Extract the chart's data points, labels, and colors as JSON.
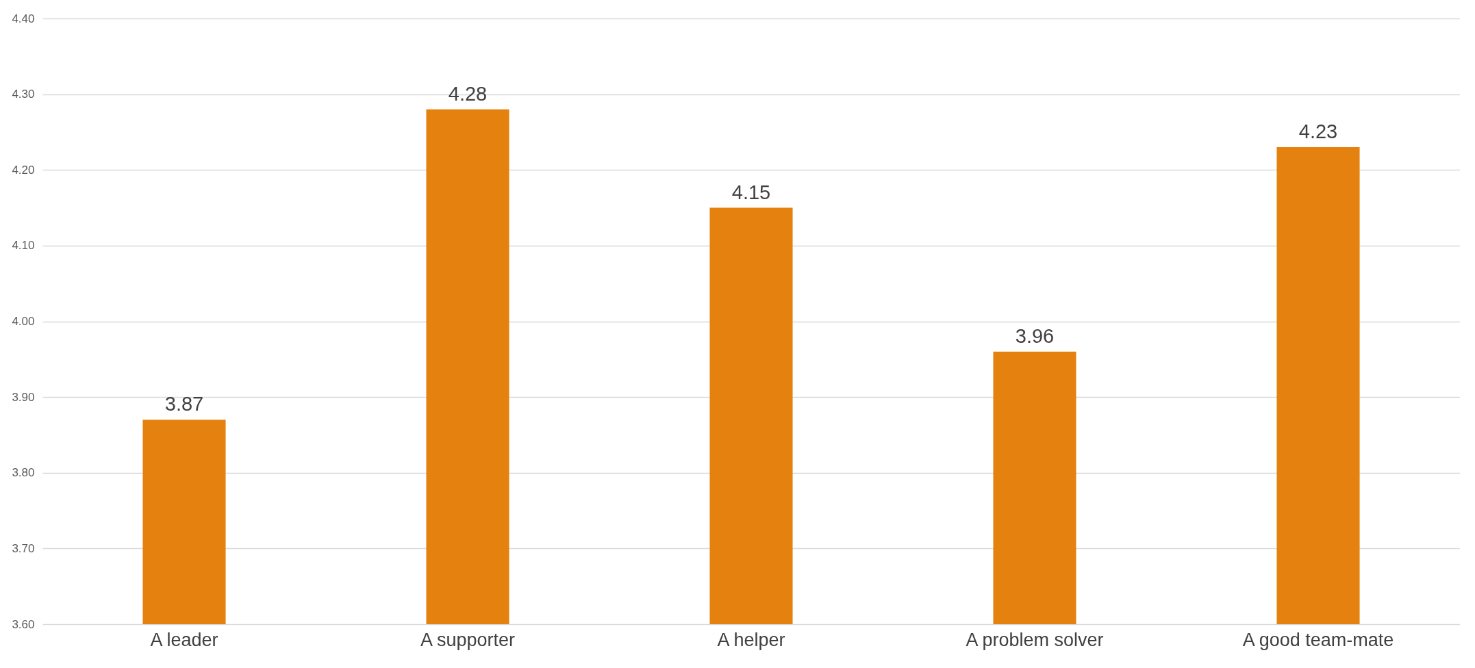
{
  "chart_data": {
    "type": "bar",
    "categories": [
      "A leader",
      "A supporter",
      "A helper",
      "A problem solver",
      "A good team-mate"
    ],
    "values": [
      3.87,
      4.28,
      4.15,
      3.96,
      4.23
    ],
    "color": "#e5820f",
    "ylim": [
      3.6,
      4.4
    ],
    "yticks": [
      {
        "value": 3.6,
        "label": "3.60"
      },
      {
        "value": 3.7,
        "label": "3.70"
      },
      {
        "value": 3.8,
        "label": "3.80"
      },
      {
        "value": 3.9,
        "label": "3.90"
      },
      {
        "value": 4.0,
        "label": "4.00"
      },
      {
        "value": 4.1,
        "label": "4.10"
      },
      {
        "value": 4.2,
        "label": "4.20"
      },
      {
        "value": 4.3,
        "label": "4.30"
      },
      {
        "value": 4.4,
        "label": "4.40"
      }
    ],
    "grid": "y",
    "data_labels": true
  }
}
